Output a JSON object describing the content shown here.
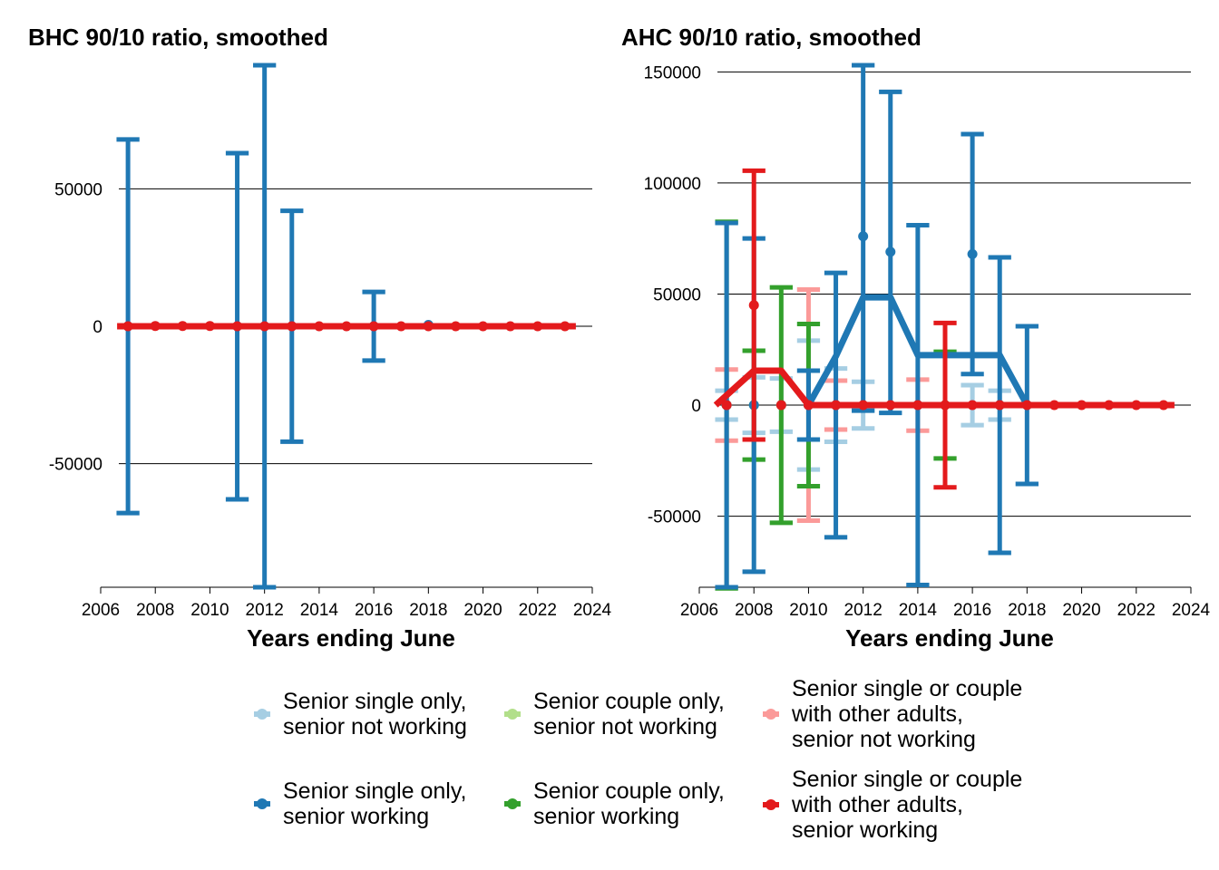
{
  "chart_data": [
    {
      "type": "line",
      "title": "BHC 90/10 ratio, smoothed",
      "xlabel": "Years ending June",
      "ylabel": "",
      "xlim": [
        2006,
        2024
      ],
      "ylim": [
        -95000,
        95000
      ],
      "xticks": [
        2006,
        2008,
        2010,
        2012,
        2014,
        2016,
        2018,
        2020,
        2022,
        2024
      ],
      "yticks": [
        -50000,
        0,
        50000
      ],
      "grid": "horizontal",
      "series": [
        {
          "name": "Senior single only, senior not working",
          "color": "#a6cee3",
          "points": [],
          "line": []
        },
        {
          "name": "Senior couple only, senior not working",
          "color": "#b2df8a",
          "points": [],
          "line": []
        },
        {
          "name": "Senior single or couple with other adults, senior not working",
          "color": "#fb9a99",
          "points": [],
          "line": []
        },
        {
          "name": "Senior single only, senior working",
          "color": "#1f78b4",
          "points": [
            {
              "x": 2007,
              "y": 0,
              "lo": -68000,
              "hi": 68000
            },
            {
              "x": 2011,
              "y": 0,
              "lo": -63000,
              "hi": 63000
            },
            {
              "x": 2012,
              "y": 0,
              "lo": -95000,
              "hi": 95000
            },
            {
              "x": 2013,
              "y": 0,
              "lo": -42000,
              "hi": 42000
            },
            {
              "x": 2016,
              "y": 0,
              "lo": -12500,
              "hi": 12500
            },
            {
              "x": 2018,
              "y": 500
            }
          ],
          "line": [
            [
              2007,
              0
            ],
            [
              2023,
              0
            ]
          ]
        },
        {
          "name": "Senior couple only, senior working",
          "color": "#33a02c",
          "points": [],
          "line": []
        },
        {
          "name": "Senior single or couple with other adults, senior working",
          "color": "#e31a1c",
          "points": [
            {
              "x": 2007,
              "y": 0
            },
            {
              "x": 2008,
              "y": 100
            },
            {
              "x": 2009,
              "y": 100
            },
            {
              "x": 2010,
              "y": 100
            },
            {
              "x": 2011,
              "y": 0
            },
            {
              "x": 2012,
              "y": 0
            },
            {
              "x": 2013,
              "y": 0
            },
            {
              "x": 2014,
              "y": 0
            },
            {
              "x": 2015,
              "y": 0
            },
            {
              "x": 2016,
              "y": 0
            },
            {
              "x": 2017,
              "y": 0
            },
            {
              "x": 2018,
              "y": 0
            },
            {
              "x": 2019,
              "y": 0
            },
            {
              "x": 2020,
              "y": 0
            },
            {
              "x": 2021,
              "y": 0
            },
            {
              "x": 2022,
              "y": 0
            },
            {
              "x": 2023,
              "y": 0
            }
          ],
          "line": [
            [
              2006.6,
              0
            ],
            [
              2023.4,
              0
            ]
          ]
        }
      ]
    },
    {
      "type": "line",
      "title": "AHC 90/10 ratio, smoothed",
      "xlabel": "Years ending June",
      "ylabel": "",
      "xlim": [
        2006,
        2024
      ],
      "ylim": [
        -82000,
        153000
      ],
      "xticks": [
        2006,
        2008,
        2010,
        2012,
        2014,
        2016,
        2018,
        2020,
        2022,
        2024
      ],
      "yticks": [
        -50000,
        0,
        50000,
        100000,
        150000
      ],
      "grid": "horizontal",
      "series": [
        {
          "name": "Senior single only, senior not working",
          "color": "#a6cee3",
          "points": [
            {
              "x": 2007,
              "y": 0,
              "lo": -6500,
              "hi": 6500
            },
            {
              "x": 2008,
              "y": 0,
              "lo": -12500,
              "hi": 12500
            },
            {
              "x": 2009,
              "y": 0,
              "lo": -12000,
              "hi": 12000
            },
            {
              "x": 2010,
              "y": 0,
              "lo": -29000,
              "hi": 29000
            },
            {
              "x": 2011,
              "y": 0,
              "lo": -16500,
              "hi": 16500
            },
            {
              "x": 2012,
              "y": 0,
              "lo": -10500,
              "hi": 10500
            },
            {
              "x": 2016,
              "y": 0,
              "lo": -9000,
              "hi": 9000
            },
            {
              "x": 2017,
              "y": 0,
              "lo": -6500,
              "hi": 6500
            }
          ],
          "line": []
        },
        {
          "name": "Senior couple only, senior not working",
          "color": "#b2df8a",
          "points": [],
          "line": []
        },
        {
          "name": "Senior single or couple with other adults, senior not working",
          "color": "#fb9a99",
          "points": [
            {
              "x": 2007,
              "y": 0,
              "lo": -16000,
              "hi": 16000
            },
            {
              "x": 2010,
              "y": 0,
              "lo": -52000,
              "hi": 52000
            },
            {
              "x": 2011,
              "y": 0,
              "lo": -11000,
              "hi": 11000
            },
            {
              "x": 2014,
              "y": 0,
              "lo": -11500,
              "hi": 11500
            }
          ],
          "line": []
        },
        {
          "name": "Senior single only, senior working",
          "color": "#1f78b4",
          "points": [
            {
              "x": 2007,
              "y": 0,
              "lo": -82000,
              "hi": 82000
            },
            {
              "x": 2008,
              "y": 0,
              "lo": -75000,
              "hi": 75000
            },
            {
              "x": 2010,
              "y": 0,
              "lo": -15500,
              "hi": 15500
            },
            {
              "x": 2011,
              "y": 0,
              "lo": -59500,
              "hi": 59500
            },
            {
              "x": 2012,
              "y": 76000,
              "lo": -2500,
              "hi": 153000
            },
            {
              "x": 2013,
              "y": 69000,
              "lo": -3500,
              "hi": 141000
            },
            {
              "x": 2014,
              "y": 0,
              "lo": -81000,
              "hi": 81000
            },
            {
              "x": 2016,
              "y": 68000,
              "lo": 14000,
              "hi": 122000
            },
            {
              "x": 2017,
              "y": 0,
              "lo": -66500,
              "hi": 66500
            },
            {
              "x": 2018,
              "y": 0,
              "lo": -35500,
              "hi": 35500
            }
          ],
          "line": [
            [
              2010,
              0
            ],
            [
              2011,
              22000
            ],
            [
              2012,
              48500
            ],
            [
              2013,
              48500
            ],
            [
              2014,
              22500
            ],
            [
              2015,
              22500
            ],
            [
              2016,
              22500
            ],
            [
              2017,
              22500
            ],
            [
              2018,
              0
            ]
          ]
        },
        {
          "name": "Senior couple only, senior working",
          "color": "#33a02c",
          "points": [
            {
              "x": 2007,
              "y": 0,
              "lo": -82500,
              "hi": 82500
            },
            {
              "x": 2008,
              "y": 0,
              "lo": -24500,
              "hi": 24500
            },
            {
              "x": 2009,
              "y": 0,
              "lo": -53000,
              "hi": 53000
            },
            {
              "x": 2010,
              "y": 0,
              "lo": -36500,
              "hi": 36500
            },
            {
              "x": 2015,
              "y": 0,
              "lo": -24000,
              "hi": 24000
            }
          ],
          "line": []
        },
        {
          "name": "Senior single or couple with other adults, senior working",
          "color": "#e31a1c",
          "points": [
            {
              "x": 2007,
              "y": 0
            },
            {
              "x": 2008,
              "y": 45000,
              "lo": -15500,
              "hi": 105500
            },
            {
              "x": 2009,
              "y": 0
            },
            {
              "x": 2010,
              "y": 0
            },
            {
              "x": 2011,
              "y": 0
            },
            {
              "x": 2012,
              "y": 0
            },
            {
              "x": 2013,
              "y": 0
            },
            {
              "x": 2014,
              "y": 0
            },
            {
              "x": 2015,
              "y": 0,
              "lo": -37000,
              "hi": 37000
            },
            {
              "x": 2016,
              "y": 0
            },
            {
              "x": 2017,
              "y": 0
            },
            {
              "x": 2018,
              "y": 0
            },
            {
              "x": 2019,
              "y": 0
            },
            {
              "x": 2020,
              "y": 0
            },
            {
              "x": 2021,
              "y": 0
            },
            {
              "x": 2022,
              "y": 0
            },
            {
              "x": 2023,
              "y": 0
            }
          ],
          "line": [
            [
              2006.6,
              0
            ],
            [
              2008,
              15500
            ],
            [
              2009,
              15500
            ],
            [
              2010,
              0
            ],
            [
              2023.4,
              0
            ]
          ]
        }
      ]
    }
  ],
  "legend": {
    "items": [
      {
        "label": "Senior single only,\nsenior not working",
        "color": "#a6cee3"
      },
      {
        "label": "Senior couple only,\nsenior not working",
        "color": "#b2df8a"
      },
      {
        "label": "Senior single or couple\nwith other adults,\nsenior not working",
        "color": "#fb9a99"
      },
      {
        "label": "Senior single only,\nsenior working",
        "color": "#1f78b4"
      },
      {
        "label": "Senior couple only,\nsenior working",
        "color": "#33a02c"
      },
      {
        "label": "Senior single or couple\nwith other adults,\nsenior working",
        "color": "#e31a1c"
      }
    ]
  }
}
